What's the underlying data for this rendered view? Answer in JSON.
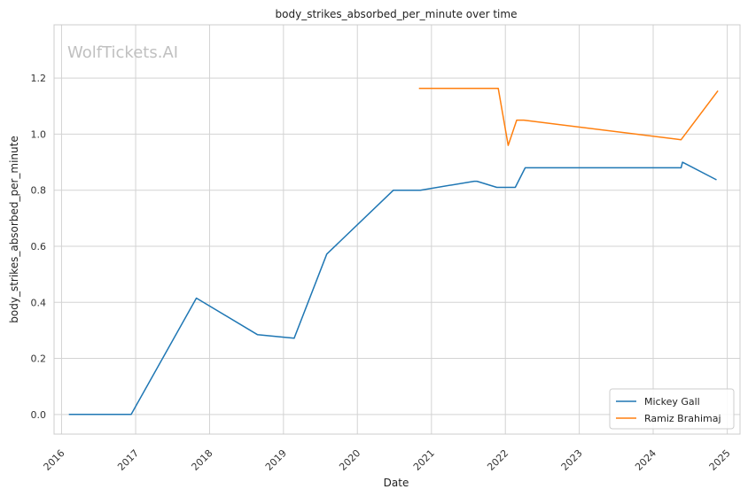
{
  "chart_data": {
    "type": "line",
    "title": "body_strikes_absorbed_per_minute over time",
    "xlabel": "Date",
    "ylabel": "body_strikes_absorbed_per_minute",
    "watermark": "WolfTickets.AI",
    "x_ticks": [
      "2016",
      "2017",
      "2018",
      "2019",
      "2020",
      "2021",
      "2022",
      "2023",
      "2024",
      "2025"
    ],
    "y_ticks": [
      "0.0",
      "0.2",
      "0.4",
      "0.6",
      "0.8",
      "1.0",
      "1.2"
    ],
    "xlim": [
      "2015-11-25",
      "2025-03-05"
    ],
    "ylim": [
      -0.07,
      1.39
    ],
    "grid": true,
    "legend_position": "bottom-right",
    "series": [
      {
        "name": "Mickey Gall",
        "color": "#1f77b4",
        "points": [
          [
            "2016-02-06",
            0.0
          ],
          [
            "2016-12-10",
            0.0
          ],
          [
            "2017-10-28",
            0.415
          ],
          [
            "2018-08-25",
            0.285
          ],
          [
            "2019-02-23",
            0.272
          ],
          [
            "2019-08-03",
            0.572
          ],
          [
            "2020-06-27",
            0.8
          ],
          [
            "2020-11-07",
            0.8
          ],
          [
            "2021-07-31",
            0.832
          ],
          [
            "2021-08-14",
            0.832
          ],
          [
            "2021-11-20",
            0.81
          ],
          [
            "2022-02-19",
            0.81
          ],
          [
            "2022-04-09",
            0.88
          ],
          [
            "2024-05-18",
            0.88
          ],
          [
            "2024-05-25",
            0.9
          ],
          [
            "2024-11-09",
            0.837
          ]
        ]
      },
      {
        "name": "Ramiz Brahimaj",
        "color": "#ff7f0e",
        "points": [
          [
            "2020-10-31",
            1.163
          ],
          [
            "2021-11-27",
            1.163
          ],
          [
            "2022-01-15",
            0.96
          ],
          [
            "2022-02-26",
            1.05
          ],
          [
            "2022-04-02",
            1.05
          ],
          [
            "2024-05-18",
            0.98
          ],
          [
            "2024-11-16",
            1.155
          ]
        ]
      }
    ]
  }
}
